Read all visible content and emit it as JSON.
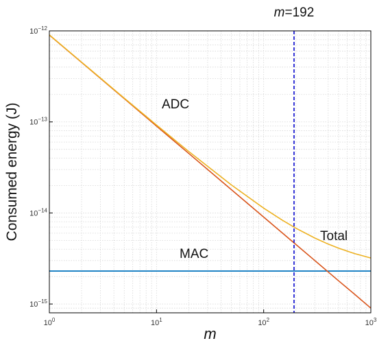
{
  "chart_data": {
    "type": "line",
    "xlabel": "m",
    "ylabel": "Consumed energy (J)",
    "xscale": "log",
    "yscale": "log",
    "xlim": [
      1,
      1000
    ],
    "ylim": [
      8e-16,
      1e-12
    ],
    "grid": true,
    "x_ticks": [
      {
        "base": "10",
        "exp": "0"
      },
      {
        "base": "10",
        "exp": "1"
      },
      {
        "base": "10",
        "exp": "2"
      },
      {
        "base": "10",
        "exp": "3"
      }
    ],
    "y_ticks": [
      {
        "base": "10",
        "exp": "−12"
      },
      {
        "base": "10",
        "exp": "−13"
      },
      {
        "base": "10",
        "exp": "−14"
      },
      {
        "base": "10",
        "exp": "−15"
      }
    ],
    "series": [
      {
        "name": "ADC",
        "color": "#d95319",
        "x": [
          1,
          2,
          5,
          10,
          20,
          50,
          100,
          192,
          200,
          300,
          500,
          700,
          1000
        ],
        "y": [
          9e-13,
          4.5e-13,
          1.8e-13,
          9e-14,
          4.5e-14,
          1.8e-14,
          9e-15,
          4.69e-15,
          4.5e-15,
          3e-15,
          1.8e-15,
          1.29e-15,
          9e-16
        ]
      },
      {
        "name": "MAC",
        "color": "#0072bd",
        "x": [
          1,
          1000
        ],
        "y": [
          2.3e-15,
          2.3e-15
        ]
      },
      {
        "name": "Total",
        "color": "#edb120",
        "x": [
          1,
          2,
          5,
          10,
          20,
          50,
          100,
          150,
          192,
          200,
          300,
          400,
          500,
          700,
          1000
        ],
        "y": [
          9.023e-13,
          4.523e-13,
          1.823e-13,
          9.23e-14,
          4.73e-14,
          2.03e-14,
          1.13e-14,
          8.3e-15,
          6.99e-15,
          6.8e-15,
          5.3e-15,
          4.55e-15,
          4.1e-15,
          3.59e-15,
          3.2e-15
        ]
      }
    ],
    "vline": {
      "x": 192,
      "color": "#0000cc",
      "style": "dashed",
      "label_var": "m",
      "label_rest": "=192"
    },
    "annotations": {
      "adc": "ADC",
      "mac": "MAC",
      "total": "Total"
    }
  }
}
